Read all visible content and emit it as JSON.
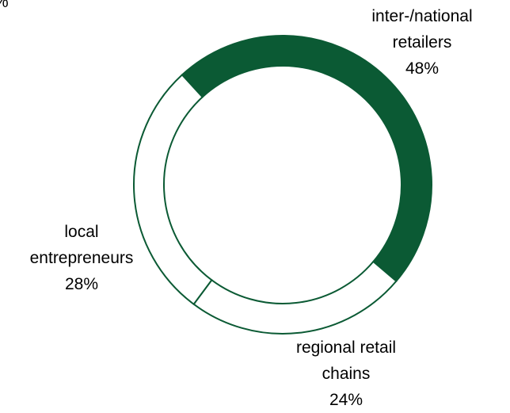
{
  "chart_data": {
    "type": "donut",
    "annotations": [
      "%"
    ],
    "categories": [
      "inter-/national retailers",
      "regional retail chains",
      "local entrepreneurs"
    ],
    "values": [
      48,
      24,
      28
    ],
    "value_labels": [
      "48%",
      "24%",
      "28%"
    ],
    "colors": [
      "#0b5a34",
      "#ffffff",
      "#ffffff"
    ],
    "edge_color": "#0b5a34"
  }
}
